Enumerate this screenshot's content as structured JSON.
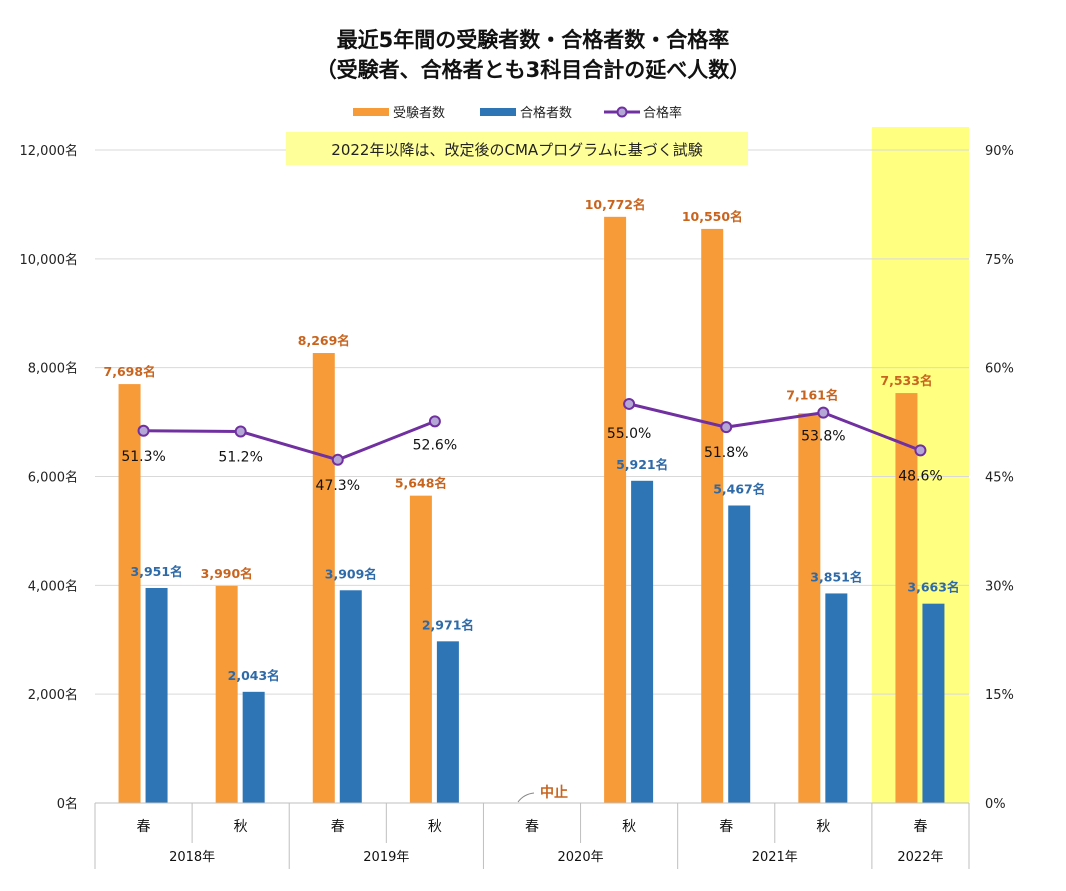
{
  "chart_data": {
    "type": "bar",
    "title_line1": "最近5年間の受験者数・合格者数・合格率",
    "title_line2": "（受験者、合格者とも3科目合計の延べ人数）",
    "legend": [
      "受験者数",
      "合格者数",
      "合格率"
    ],
    "note": "2022年以降は、改定後のCMAプログラムに基づく試験",
    "suspended_label": "中止",
    "categories": [
      "春",
      "秋",
      "春",
      "秋",
      "春",
      "秋",
      "春",
      "秋",
      "春"
    ],
    "years": [
      {
        "label": "2018年",
        "span": 2
      },
      {
        "label": "2019年",
        "span": 2
      },
      {
        "label": "2020年",
        "span": 2
      },
      {
        "label": "2021年",
        "span": 2
      },
      {
        "label": "2022年",
        "span": 1
      }
    ],
    "series": [
      {
        "name": "受験者数",
        "color": "#f79a38",
        "values": [
          7698,
          3990,
          8269,
          5648,
          null,
          10772,
          10550,
          7161,
          7533
        ],
        "labels": [
          "7,698名",
          "3,990名",
          "8,269名",
          "5,648名",
          "",
          "10,772名",
          "10,550名",
          "7,161名",
          "7,533名"
        ]
      },
      {
        "name": "合格者数",
        "color": "#2e75b6",
        "values": [
          3951,
          2043,
          3909,
          2971,
          null,
          5921,
          5467,
          3851,
          3663
        ],
        "labels": [
          "3,951名",
          "2,043名",
          "3,909名",
          "2,971名",
          "",
          "5,921名",
          "5,467名",
          "3,851名",
          "3,663名"
        ]
      },
      {
        "name": "合格率",
        "color": "#7030a0",
        "type": "line",
        "values": [
          51.3,
          51.2,
          47.3,
          52.6,
          null,
          55.0,
          51.8,
          53.8,
          48.6
        ],
        "labels": [
          "51.3%",
          "51.2%",
          "47.3%",
          "52.6%",
          "",
          "55.0%",
          "51.8%",
          "53.8%",
          "48.6%"
        ]
      }
    ],
    "y_left": {
      "min": 0,
      "max": 12000,
      "ticks": [
        "0名",
        "2,000名",
        "4,000名",
        "6,000名",
        "8,000名",
        "10,000名",
        "12,000名"
      ]
    },
    "y_right": {
      "min": 0,
      "max": 90,
      "ticks": [
        "0%",
        "15%",
        "30%",
        "45%",
        "60%",
        "75%",
        "90%"
      ]
    },
    "highlight_category_index": 8,
    "highlight_color": "#ffff80",
    "grid": true,
    "legend_position": "top"
  }
}
